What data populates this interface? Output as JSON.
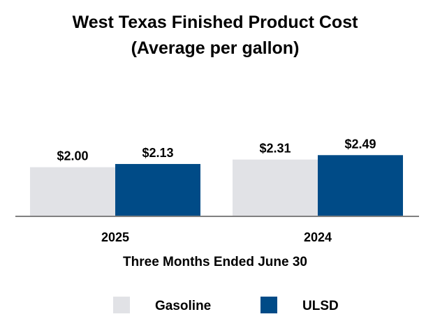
{
  "chart_data": {
    "type": "bar",
    "title": "West Texas Finished Product Cost",
    "subtitle": "(Average per gallon)",
    "xlabel": "Three Months Ended June 30",
    "ylabel": "",
    "categories": [
      "2025",
      "2024"
    ],
    "series": [
      {
        "name": "Gasoline",
        "values": [
          2.0,
          2.31
        ],
        "labels": [
          "$2.00",
          "$2.31"
        ],
        "color": "#e1e2e6"
      },
      {
        "name": "ULSD",
        "values": [
          2.13,
          2.49
        ],
        "labels": [
          "$2.13",
          "$2.49"
        ],
        "color": "#004b87"
      }
    ],
    "ylim": [
      0,
      8.8
    ],
    "grid": false,
    "legend": "bottom-center",
    "axis_color": "#808080"
  }
}
